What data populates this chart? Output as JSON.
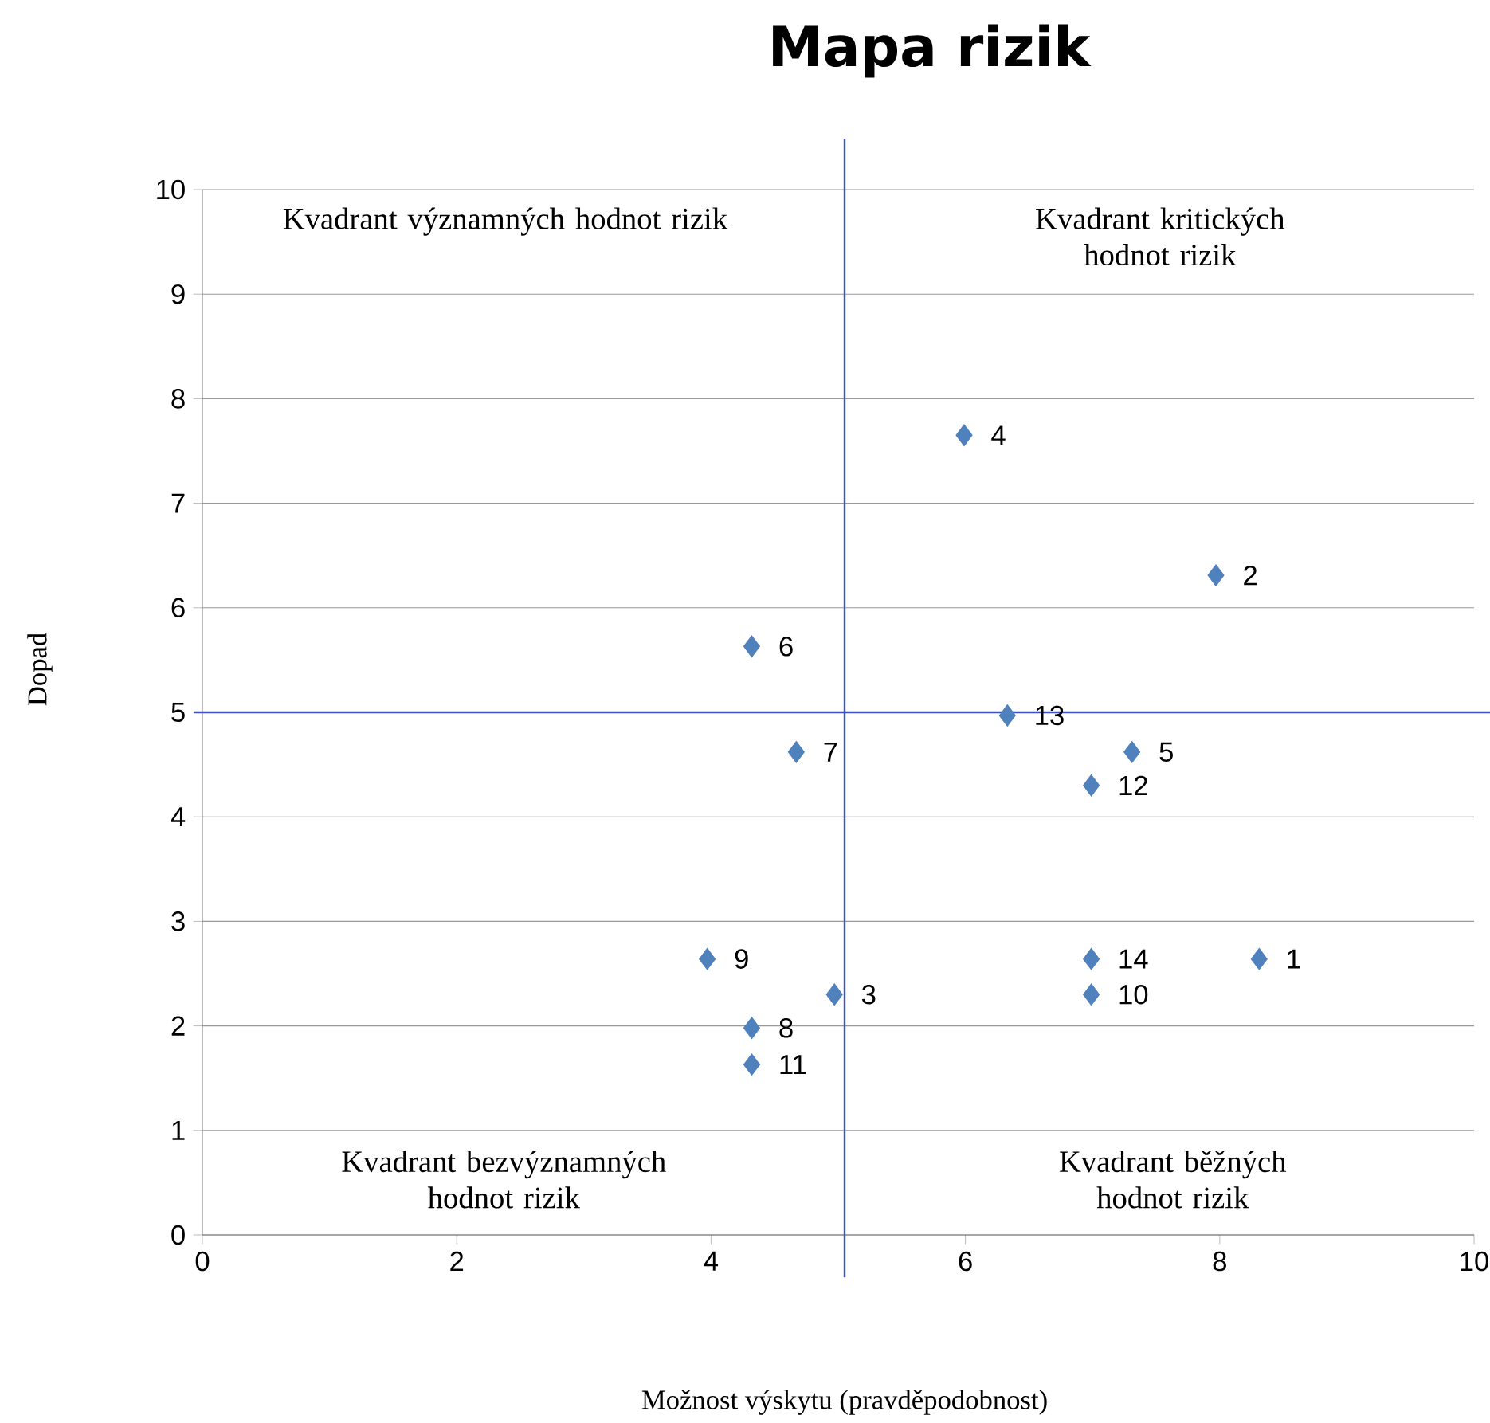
{
  "chart_data": {
    "type": "scatter",
    "title": "Mapa rizik",
    "xlabel": "Možnost výskytu (pravděpodobnost)",
    "ylabel": "Dopad",
    "x": [
      8.31,
      7.97,
      4.97,
      5.99,
      7.31,
      4.32,
      4.67,
      4.32,
      3.97,
      6.99,
      4.32,
      6.99,
      6.33,
      6.99
    ],
    "values": [
      2.64,
      6.31,
      2.3,
      7.65,
      4.62,
      5.63,
      4.62,
      1.98,
      2.64,
      2.3,
      1.63,
      4.3,
      4.97,
      2.64
    ],
    "color": "#4f81bd",
    "marker": "diamond",
    "grid": "y",
    "xlim": [
      0,
      10
    ],
    "ylim": [
      0,
      10
    ],
    "xticks": [
      0,
      2,
      4,
      6,
      8,
      10
    ],
    "yticks": [
      0,
      1,
      2,
      3,
      4,
      5,
      6,
      7,
      8,
      9,
      10
    ],
    "ref_lines": [
      {
        "axis": "x",
        "value": 5.05,
        "color": "#3f51c8"
      },
      {
        "axis": "y",
        "value": 5,
        "color": "#3f51c8"
      }
    ],
    "annotations": [
      "Kvadrant významných hodnot rizik",
      "Kvadrant kritických hodnot rizik",
      "Kvadrant bezvýznamných hodnot rizik",
      "Kvadrant běžných hodnot rizik",
      {
        "text": "1",
        "x": 8.31,
        "y": 2.64
      },
      {
        "text": "2",
        "x": 7.97,
        "y": 6.31
      },
      {
        "text": "3",
        "x": 4.97,
        "y": 2.3
      },
      {
        "text": "4",
        "x": 5.99,
        "y": 7.65
      },
      {
        "text": "5",
        "x": 7.31,
        "y": 4.62
      },
      {
        "text": "6",
        "x": 4.32,
        "y": 5.63
      },
      {
        "text": "7",
        "x": 4.67,
        "y": 4.62
      },
      {
        "text": "8",
        "x": 4.32,
        "y": 1.98
      },
      {
        "text": "9",
        "x": 3.97,
        "y": 2.64
      },
      {
        "text": "10",
        "x": 6.99,
        "y": 2.3
      },
      {
        "text": "11",
        "x": 4.32,
        "y": 1.63
      },
      {
        "text": "12",
        "x": 6.99,
        "y": 4.3
      },
      {
        "text": "13",
        "x": 6.33,
        "y": 4.97
      },
      {
        "text": "14",
        "x": 6.99,
        "y": 2.64
      }
    ]
  }
}
